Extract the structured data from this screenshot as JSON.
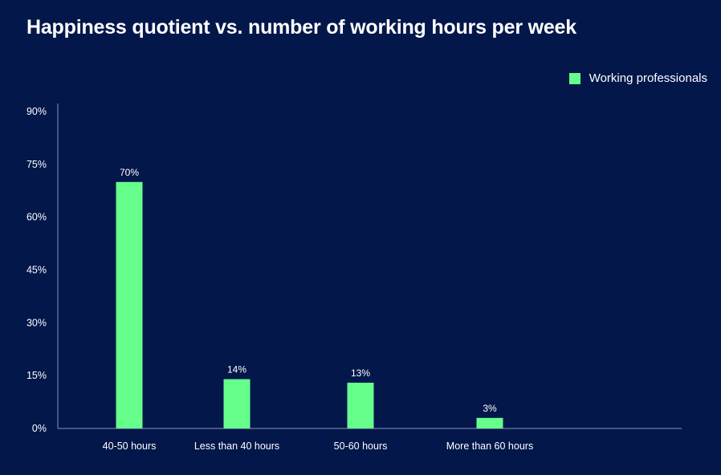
{
  "chart_data": {
    "type": "bar",
    "title": "Happiness quotient vs. number of working hours per week",
    "xlabel": "",
    "ylabel": "",
    "categories": [
      "40-50 hours",
      "Less than 40 hours",
      "50-60 hours",
      "More than 60 hours"
    ],
    "series": [
      {
        "name": "Working professionals",
        "values": [
          70,
          14,
          13,
          3
        ],
        "data_labels": [
          "70%",
          "14%",
          "13%",
          "3%"
        ]
      }
    ],
    "ylim": [
      0,
      90
    ],
    "yticks": [
      0,
      15,
      30,
      45,
      60,
      75,
      90
    ],
    "ytick_labels": [
      "0%",
      "15%",
      "30%",
      "45%",
      "60%",
      "75%",
      "90%"
    ],
    "legend_position": "top-right",
    "grid": false,
    "colors": {
      "background": "#03174a",
      "bar": "#66ff8c",
      "axis": "#8a94b8",
      "text": "#ffffff"
    }
  }
}
